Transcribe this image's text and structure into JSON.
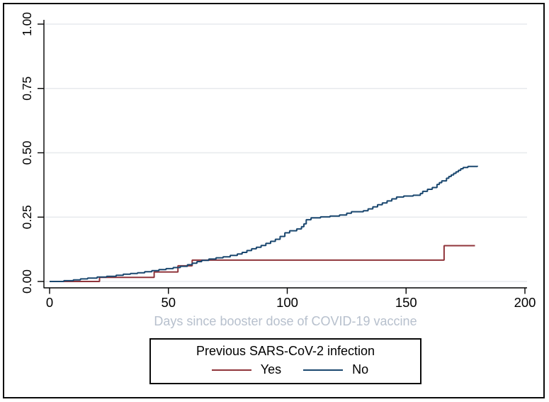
{
  "figure": {
    "background": "#ffffff",
    "frame_color": "#0a0a0a"
  },
  "chart_data": {
    "type": "line",
    "subtype": "step-cumulative-incidence",
    "title": "",
    "xlabel": "Days since booster dose of COVID-19 vaccine",
    "ylabel": "",
    "xlim": [
      0,
      200
    ],
    "ylim": [
      0,
      1
    ],
    "xticks": [
      0,
      50,
      100,
      150,
      200
    ],
    "ytick_labels": [
      "0.00",
      "0.25",
      "0.50",
      "0.75",
      "1.00"
    ],
    "ytick_values": [
      0,
      0.25,
      0.5,
      0.75,
      1
    ],
    "grid": "horizontal",
    "grid_color": "#e7eaed",
    "axis_color": "#000000",
    "xlabel_color": "#b7c0cd",
    "legend": {
      "title": "Previous SARS-CoV-2 infection",
      "position": "bottom",
      "entries": [
        {
          "label": "Yes",
          "color": "#90353b"
        },
        {
          "label": "No",
          "color": "#1a476f"
        }
      ]
    },
    "series": [
      {
        "name": "Yes",
        "color": "#90353b",
        "points": [
          [
            0,
            0
          ],
          [
            21,
            0.016
          ],
          [
            44,
            0.037
          ],
          [
            54,
            0.061
          ],
          [
            60,
            0.083
          ],
          [
            166,
            0.139
          ],
          [
            179,
            0.139
          ]
        ]
      },
      {
        "name": "No",
        "color": "#1a476f",
        "points": [
          [
            0,
            0
          ],
          [
            6,
            0.003
          ],
          [
            10,
            0.006
          ],
          [
            13,
            0.01
          ],
          [
            16,
            0.013
          ],
          [
            20,
            0.017
          ],
          [
            24,
            0.02
          ],
          [
            28,
            0.024
          ],
          [
            31,
            0.028
          ],
          [
            34,
            0.031
          ],
          [
            37,
            0.034
          ],
          [
            40,
            0.038
          ],
          [
            43,
            0.042
          ],
          [
            46,
            0.046
          ],
          [
            49,
            0.05
          ],
          [
            52,
            0.054
          ],
          [
            55,
            0.059
          ],
          [
            58,
            0.065
          ],
          [
            60,
            0.071
          ],
          [
            62,
            0.077
          ],
          [
            64,
            0.082
          ],
          [
            67,
            0.087
          ],
          [
            70,
            0.092
          ],
          [
            73,
            0.096
          ],
          [
            76,
            0.101
          ],
          [
            79,
            0.107
          ],
          [
            81,
            0.113
          ],
          [
            83,
            0.12
          ],
          [
            85,
            0.127
          ],
          [
            87,
            0.133
          ],
          [
            89,
            0.14
          ],
          [
            91,
            0.148
          ],
          [
            93,
            0.156
          ],
          [
            95,
            0.164
          ],
          [
            97,
            0.175
          ],
          [
            99,
            0.189
          ],
          [
            101,
            0.197
          ],
          [
            104,
            0.204
          ],
          [
            106,
            0.213
          ],
          [
            107,
            0.224
          ],
          [
            108,
            0.24
          ],
          [
            110,
            0.247
          ],
          [
            114,
            0.251
          ],
          [
            118,
            0.254
          ],
          [
            122,
            0.258
          ],
          [
            125,
            0.265
          ],
          [
            127,
            0.271
          ],
          [
            132,
            0.275
          ],
          [
            134,
            0.282
          ],
          [
            136,
            0.29
          ],
          [
            138,
            0.298
          ],
          [
            140,
            0.305
          ],
          [
            142,
            0.313
          ],
          [
            144,
            0.321
          ],
          [
            146,
            0.328
          ],
          [
            149,
            0.332
          ],
          [
            153,
            0.335
          ],
          [
            156,
            0.342
          ],
          [
            157,
            0.35
          ],
          [
            159,
            0.358
          ],
          [
            161,
            0.365
          ],
          [
            163,
            0.377
          ],
          [
            164,
            0.384
          ],
          [
            165,
            0.391
          ],
          [
            167,
            0.401
          ],
          [
            168,
            0.408
          ],
          [
            169,
            0.414
          ],
          [
            170,
            0.42
          ],
          [
            171,
            0.426
          ],
          [
            172,
            0.432
          ],
          [
            173,
            0.438
          ],
          [
            174,
            0.443
          ],
          [
            176,
            0.447
          ],
          [
            180,
            0.45
          ]
        ]
      }
    ]
  }
}
